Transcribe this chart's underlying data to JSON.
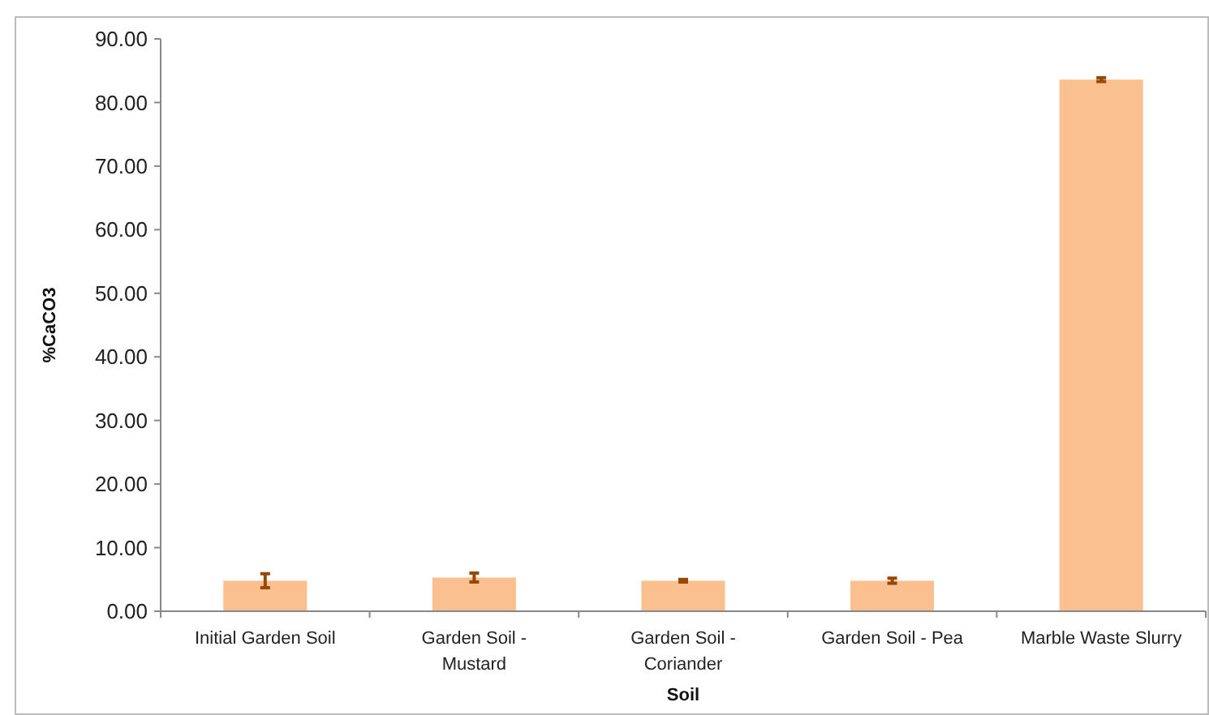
{
  "chart_data": {
    "type": "bar",
    "xlabel": "Soil",
    "ylabel": "%CaCO3",
    "categories": [
      "Initial Garden Soil",
      "Garden Soil - Mustard",
      "Garden Soil - Coriander",
      "Garden Soil - Pea",
      "Marble Waste Slurry"
    ],
    "values": [
      4.8,
      5.3,
      4.8,
      4.8,
      83.6
    ],
    "errors": [
      1.1,
      0.7,
      0.2,
      0.4,
      0.3
    ],
    "color": "#fac090",
    "ylim": [
      0,
      90
    ],
    "yticks": [
      {
        "value": 0,
        "label": "0.00"
      },
      {
        "value": 10,
        "label": "10.00"
      },
      {
        "value": 20,
        "label": "20.00"
      },
      {
        "value": 30,
        "label": "30.00"
      },
      {
        "value": 40,
        "label": "40.00"
      },
      {
        "value": 50,
        "label": "50.00"
      },
      {
        "value": 60,
        "label": "60.00"
      },
      {
        "value": 70,
        "label": "70.00"
      },
      {
        "value": 80,
        "label": "80.00"
      },
      {
        "value": 90,
        "label": "90.00"
      }
    ],
    "grid": false
  }
}
